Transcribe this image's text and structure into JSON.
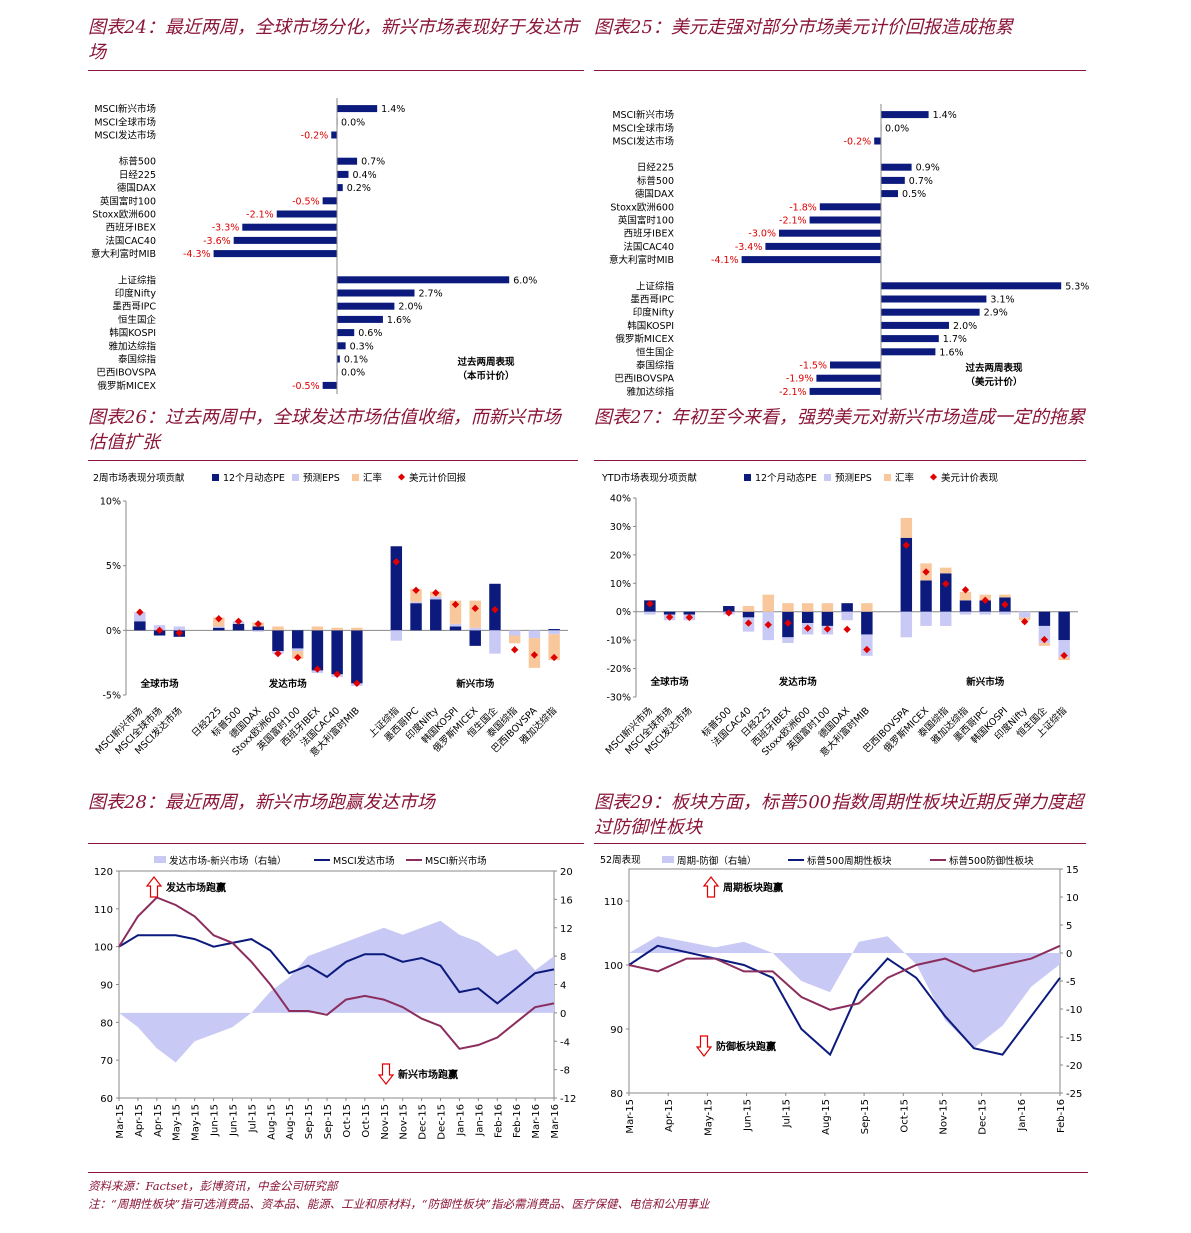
{
  "footer": {
    "source": "资料来源：Factset，彭博资讯，中金公司研究部",
    "note": "注：“周期性板块”指可选消费品、资本品、能源、工业和原材料，“防御性板块”指必需消费品、医疗保健、电信和公用事业"
  },
  "colors": {
    "navy": "#0b1a7c",
    "lavender": "#c9c9f5",
    "orange": "#f8c79c",
    "red": "#e00000",
    "purple": "#8b2e5e",
    "title": "#8a1538"
  },
  "c24": {
    "title": "图表24：最近两周，全球市场分化，新兴市场表现好于发达市场",
    "note1": "过去两周表现",
    "note2": "（本币计价）",
    "chart_data": {
      "type": "bar",
      "orientation": "horizontal",
      "unit": "%",
      "groups": [
        {
          "items": [
            [
              "MSCI新兴市场",
              1.4
            ],
            [
              "MSCI全球市场",
              0.0
            ],
            [
              "MSCI发达市场",
              -0.2
            ]
          ]
        },
        {
          "items": [
            [
              "标普500",
              0.7
            ],
            [
              "日经225",
              0.4
            ],
            [
              "德国DAX",
              0.2
            ],
            [
              "英国富时100",
              -0.5
            ],
            [
              "Stoxx欧洲600",
              -2.1
            ],
            [
              "西班牙IBEX",
              -3.3
            ],
            [
              "法国CAC40",
              -3.6
            ],
            [
              "意大利富时MIB",
              -4.3
            ]
          ]
        },
        {
          "items": [
            [
              "上证综指",
              6.0
            ],
            [
              "印度Nifty",
              2.7
            ],
            [
              "墨西哥IPC",
              2.0
            ],
            [
              "恒生国企",
              1.6
            ],
            [
              "韩国KOSPI",
              0.6
            ],
            [
              "雅加达综指",
              0.3
            ],
            [
              "泰国综指",
              0.1
            ],
            [
              "巴西IBOVSPA",
              0.0
            ],
            [
              "俄罗斯MICEX",
              -0.5
            ]
          ]
        }
      ]
    }
  },
  "c25": {
    "title": "图表25：美元走强对部分市场美元计价回报造成拖累",
    "note1": "过去两周表现",
    "note2": "（美元计价）",
    "chart_data": {
      "type": "bar",
      "orientation": "horizontal",
      "unit": "%",
      "groups": [
        {
          "items": [
            [
              "MSCI新兴市场",
              1.4
            ],
            [
              "MSCI全球市场",
              0.0
            ],
            [
              "MSCI发达市场",
              -0.2
            ]
          ]
        },
        {
          "items": [
            [
              "日经225",
              0.9
            ],
            [
              "标普500",
              0.7
            ],
            [
              "德国DAX",
              0.5
            ],
            [
              "Stoxx欧洲600",
              -1.8
            ],
            [
              "英国富时100",
              -2.1
            ],
            [
              "西班牙IBEX",
              -3.0
            ],
            [
              "法国CAC40",
              -3.4
            ],
            [
              "意大利富时MIB",
              -4.1
            ]
          ]
        },
        {
          "items": [
            [
              "上证综指",
              5.3
            ],
            [
              "墨西哥IPC",
              3.1
            ],
            [
              "印度Nifty",
              2.9
            ],
            [
              "韩国KOSPI",
              2.0
            ],
            [
              "俄罗斯MICEX",
              1.7
            ],
            [
              "恒生国企",
              1.6
            ],
            [
              "泰国综指",
              -1.5
            ],
            [
              "巴西IBOVSPA",
              -1.9
            ],
            [
              "雅加达综指",
              -2.1
            ]
          ]
        }
      ]
    }
  },
  "c26": {
    "title": "图表26：过去两周中，全球发达市场估值收缩，而新兴市场估值扩张",
    "chart_data": {
      "type": "bar",
      "stacked": true,
      "header": "2周市场表现分项贡献",
      "legend": [
        "12个月动态PE",
        "预测EPS",
        "汇率",
        "美元计价回报"
      ],
      "ylim": [
        -5,
        10
      ],
      "yticks": [
        -5,
        0,
        5,
        10
      ],
      "ytick_labels": [
        "-5%",
        "0%",
        "5%",
        "10%"
      ],
      "group_labels": [
        "全球市场",
        "发达市场",
        "新兴市场"
      ],
      "groups": [
        [
          0,
          1,
          2
        ],
        [
          3,
          4,
          5,
          6,
          7,
          8,
          9,
          10
        ],
        [
          11,
          12,
          13,
          14,
          15,
          16,
          17,
          18,
          19
        ]
      ],
      "categories": [
        "MSCI新兴市场",
        "MSCI全球市场",
        "MSCI发达市场",
        "日经225",
        "标普500",
        "德国DAX",
        "Stoxx欧洲600",
        "英国富时100",
        "西班牙IBEX",
        "法国CAC40",
        "意大利富时MIB",
        "上证综指",
        "墨西哥IPC",
        "印度Nifty",
        "韩国KOSPI",
        "俄罗斯MICEX",
        "恒生国企",
        "泰国综指",
        "巴西IBOVSPA",
        "雅加达综指"
      ],
      "pe": [
        0.7,
        -0.4,
        -0.5,
        0.2,
        0.5,
        0.3,
        -1.6,
        -1.4,
        -3.1,
        -3.4,
        -4.1,
        6.5,
        2.1,
        2.4,
        0.3,
        -1.2,
        3.6,
        0,
        0,
        0.1
      ],
      "eps": [
        0.7,
        0.4,
        0.3,
        0.1,
        0.2,
        -0.1,
        -0.2,
        -0.2,
        -0.2,
        -0.2,
        -0.2,
        -0.8,
        0.1,
        0.2,
        0.2,
        0.2,
        -1.8,
        -0.4,
        -0.6,
        -0.3
      ],
      "fx": [
        0,
        0,
        0,
        0.7,
        0,
        0.3,
        0.3,
        -0.6,
        0.3,
        0.2,
        0.2,
        0,
        1.0,
        0.4,
        1.8,
        2.1,
        0,
        -0.6,
        -2.3,
        -2.0
      ],
      "usd": [
        1.4,
        0.0,
        -0.2,
        0.9,
        0.7,
        0.5,
        -1.8,
        -2.1,
        -3.0,
        -3.4,
        -4.1,
        5.3,
        3.1,
        2.9,
        2.0,
        1.7,
        1.6,
        -1.5,
        -1.9,
        -2.1
      ]
    }
  },
  "c27": {
    "title": "图表27：年初至今来看，强势美元对新兴市场造成一定的拖累",
    "chart_data": {
      "type": "bar",
      "stacked": true,
      "header": "YTD市场表现分项贡献",
      "legend": [
        "12个月动态PE",
        "预测EPS",
        "汇率",
        "美元计价表现"
      ],
      "ylim": [
        -30,
        40
      ],
      "yticks": [
        -30,
        -20,
        -10,
        0,
        10,
        20,
        30,
        40
      ],
      "ytick_labels": [
        "-30%",
        "-20%",
        "-10%",
        "0%",
        "10%",
        "20%",
        "30%",
        "40%"
      ],
      "group_labels": [
        "全球市场",
        "发达市场",
        "新兴市场"
      ],
      "groups": [
        [
          0,
          1,
          2
        ],
        [
          3,
          4,
          5,
          6,
          7,
          8,
          9,
          10
        ],
        [
          11,
          12,
          13,
          14,
          15,
          16,
          17,
          18,
          19
        ]
      ],
      "categories": [
        "MSCI新兴市场",
        "MSCI全球市场",
        "MSCI发达市场",
        "标普500",
        "法国CAC40",
        "日经225",
        "西班牙IBEX",
        "Stoxx欧洲600",
        "英国富时100",
        "德国DAX",
        "意大利富时MIB",
        "巴西IBOVSPA",
        "俄罗斯MICEX",
        "泰国综指",
        "雅加达综指",
        "墨西哥IPC",
        "韩国KOSPI",
        "印度Nifty",
        "恒生国企",
        "上证综指"
      ],
      "pe": [
        4,
        -1,
        -1,
        2,
        -2,
        0,
        -9,
        -4,
        -5,
        3,
        -8,
        26,
        11,
        13.5,
        4,
        4,
        5,
        0,
        -5,
        -10
      ],
      "eps": [
        -1,
        -2,
        -2,
        -1,
        -5,
        -10,
        -2,
        -4,
        -3,
        -3,
        -7.5,
        -9,
        -5,
        -5,
        -1,
        -1,
        -1,
        -2,
        -6,
        -6
      ],
      "fx": [
        0,
        0,
        0,
        0,
        2,
        6,
        3,
        3,
        3,
        0,
        3,
        7,
        6,
        2,
        3,
        2,
        1,
        -1,
        -1,
        -1
      ],
      "usd": [
        2.8,
        -1.9,
        -2.0,
        -0.4,
        -4.0,
        -4.6,
        -4.0,
        -5.8,
        -6.1,
        -6.2,
        -13.3,
        23.4,
        14.0,
        9.8,
        7.7,
        4.0,
        2.5,
        -3.5,
        -9.8,
        -15.4
      ]
    }
  },
  "c28": {
    "title": "图表28：最近两周，新兴市场跑赢发达市场",
    "up_label": "发达市场跑赢",
    "down_label": "新兴市场跑赢",
    "chart_data": {
      "type": "line",
      "legend": [
        "发达市场-新兴市场（右轴）",
        "MSCI发达市场",
        "MSCI新兴市场"
      ],
      "x_ticks": [
        "Mar-15",
        "Apr-15",
        "Apr-15",
        "May-15",
        "May-15",
        "Jun-15",
        "Jun-15",
        "Jul-15",
        "Aug-15",
        "Aug-15",
        "Sep-15",
        "Sep-15",
        "Oct-15",
        "Oct-15",
        "Nov-15",
        "Nov-15",
        "Dec-15",
        "Dec-15",
        "Jan-16",
        "Jan-16",
        "Feb-16",
        "Feb-16",
        "Mar-16",
        "Mar-16"
      ],
      "left_axis": {
        "min": 60,
        "max": 120,
        "ticks": [
          60,
          70,
          80,
          90,
          100,
          110,
          120
        ]
      },
      "right_axis": {
        "min": -12,
        "max": 20,
        "ticks": [
          -12,
          -8,
          -4,
          0,
          4,
          8,
          12,
          16,
          20
        ]
      },
      "series": [
        {
          "name": "发达市场-新兴市场（右轴）",
          "axis": "right",
          "type": "area",
          "values": [
            0,
            -2,
            -5,
            -7,
            -4,
            -3,
            -2,
            0,
            3,
            5,
            8,
            9,
            10,
            11,
            12,
            11,
            12,
            13,
            11,
            10,
            8,
            9,
            6,
            8
          ]
        },
        {
          "name": "MSCI发达市场",
          "axis": "left",
          "type": "line",
          "values": [
            100,
            103,
            103,
            103,
            102,
            100,
            101,
            102,
            99,
            93,
            95,
            92,
            96,
            98,
            98,
            96,
            97,
            95,
            88,
            89,
            85,
            89,
            93,
            94
          ]
        },
        {
          "name": "MSCI新兴市场",
          "axis": "left",
          "type": "line",
          "values": [
            100,
            108,
            113,
            111,
            108,
            103,
            101,
            96,
            90,
            83,
            83,
            82,
            86,
            87,
            86,
            84,
            81,
            79,
            73,
            74,
            76,
            80,
            84,
            85
          ]
        }
      ]
    }
  },
  "c29": {
    "title": "图表29：板块方面，标普500指数周期性板块近期反弹力度超过防御性板块",
    "header": "52周表现",
    "up_label": "周期板块跑赢",
    "down_label": "防御板块跑赢",
    "chart_data": {
      "type": "line",
      "legend": [
        "周期-防御（右轴）",
        "标普500周期性板块",
        "标普500防御性板块"
      ],
      "x_ticks": [
        "Mar-15",
        "Apr-15",
        "May-15",
        "Jun-15",
        "Jul-15",
        "Aug-15",
        "Sep-15",
        "Oct-15",
        "Nov-15",
        "Dec-15",
        "Jan-16",
        "Feb-16"
      ],
      "left_axis": {
        "min": 80,
        "max": 115,
        "ticks": [
          80,
          90,
          100,
          110
        ]
      },
      "right_axis": {
        "min": -25,
        "max": 15,
        "ticks": [
          -25,
          -20,
          -15,
          -10,
          -5,
          0,
          5,
          10,
          15
        ]
      },
      "series": [
        {
          "name": "周期-防御（右轴）",
          "axis": "right",
          "type": "area",
          "values": [
            0,
            3,
            2,
            1,
            2,
            0,
            -5,
            -7,
            2,
            3,
            -2,
            -12,
            -17,
            -13,
            -6,
            -2
          ]
        },
        {
          "name": "标普500周期性板块",
          "axis": "left",
          "type": "line",
          "values": [
            100,
            103,
            102,
            101,
            100,
            98,
            90,
            86,
            96,
            101,
            98,
            92,
            87,
            86,
            92,
            98
          ]
        },
        {
          "name": "标普500防御性板块",
          "axis": "left",
          "type": "line",
          "values": [
            100,
            99,
            101,
            101,
            99,
            99,
            95,
            93,
            94,
            98,
            100,
            101,
            99,
            100,
            101,
            103
          ]
        }
      ]
    }
  }
}
